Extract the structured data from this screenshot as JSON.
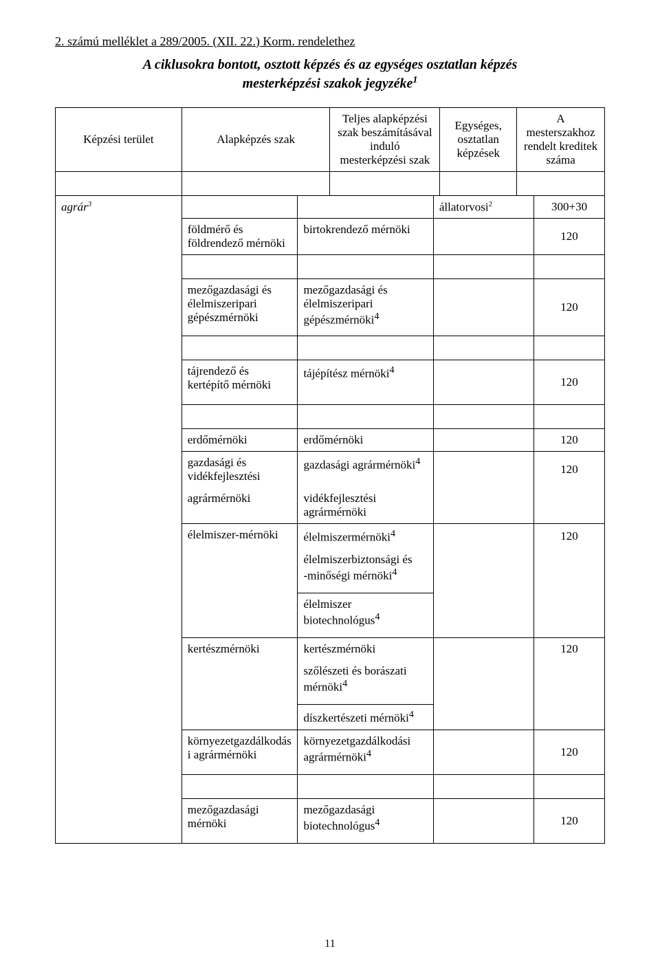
{
  "annex_line": "2. számú melléklet a 289/2005. (XII. 22.) Korm. rendelethez",
  "title_line1": "A ciklusokra bontott, osztott képzés és az egységes osztatlan képzés",
  "title_line2": "mesterképzési szakok jegyzéke",
  "title_sup": "1",
  "header": {
    "col1": "Képzési terület",
    "col2": "Alapképzés szak",
    "col3": "Teljes alapképzési szak beszámításával induló mesterképzési szak",
    "col4": "Egységes, osztatlan képzések",
    "col5": "A mesterszakhoz rendelt kreditek száma"
  },
  "domain": {
    "name": "agrár",
    "sup": "3"
  },
  "rows": {
    "r0": {
      "unified": "állatorvosi",
      "unified_sup": "2",
      "credit": "300+30"
    },
    "r1": {
      "base": "földmérő és földrendező mérnöki",
      "master": "birtokrendező mérnöki",
      "credit": "120"
    },
    "r2": {
      "base": "mezőgazdasági és élelmiszeripari gépészmérnöki",
      "master": "mezőgazdasági és élelmiszeripari",
      "master2": "gépészmérnöki",
      "master2_sup": "4",
      "credit": "120"
    },
    "r3": {
      "base": "tájrendező és kertépítő mérnöki",
      "master": "tájépítész mérnöki",
      "master_sup": "4",
      "credit": "120"
    },
    "r4": {
      "base": "erdőmérnöki",
      "master": "erdőmérnöki",
      "credit": "120"
    },
    "r5": {
      "base": "gazdasági és vidékfejlesztési",
      "master": "gazdasági agrármérnöki",
      "master_sup": "4",
      "credit": "120"
    },
    "r5b": {
      "base": "agrármérnöki",
      "master": "vidékfejlesztési agrármérnöki"
    },
    "r6": {
      "base": "élelmiszer-mérnöki",
      "master": "élelmiszermérnöki",
      "master_sup": "4",
      "credit": "120"
    },
    "r6b": {
      "master": "élelmiszerbiztonsági és",
      "master2": "-minőségi mérnöki",
      "master2_sup": "4"
    },
    "r6c": {
      "master": "élelmiszer",
      "master2": "biotechnológus",
      "master2_sup": "4"
    },
    "r7": {
      "base": "kertészmérnöki",
      "master": "kertészmérnöki",
      "credit": "120"
    },
    "r7b": {
      "master": "szőlészeti és borászati",
      "master2": "mérnöki",
      "master2_sup": "4"
    },
    "r7c": {
      "master": "díszkertészeti mérnöki",
      "master_sup": "4"
    },
    "r8": {
      "base": "környezetgazdálkodási agrármérnöki",
      "master": "környezetgazdálkodási",
      "master2": "agrármérnöki",
      "master2_sup": "4",
      "credit": "120"
    },
    "r9": {
      "base": "mezőgazdasági mérnöki",
      "master": "mezőgazdasági",
      "master2": "biotechnológus",
      "master2_sup": "4",
      "credit": "120"
    }
  },
  "page_number": "11"
}
